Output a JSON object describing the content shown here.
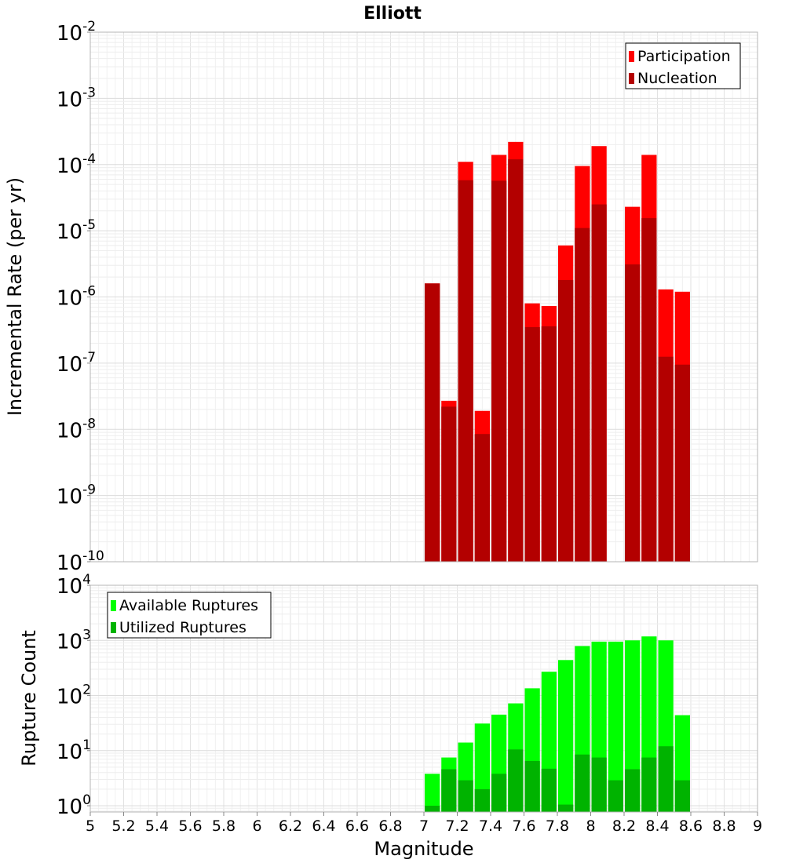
{
  "chart_data": [
    {
      "type": "bar",
      "title": "Elliott",
      "xlabel": "",
      "ylabel": "Incremental Rate (per yr)",
      "scale": "log",
      "ylim": [
        1e-10,
        0.01
      ],
      "xlim": [
        5,
        9
      ],
      "bar_width": 0.1,
      "y_ticks": [
        {
          "base": "10",
          "exp": "-10"
        },
        {
          "base": "10",
          "exp": "-9"
        },
        {
          "base": "10",
          "exp": "-8"
        },
        {
          "base": "10",
          "exp": "-7"
        },
        {
          "base": "10",
          "exp": "-6"
        },
        {
          "base": "10",
          "exp": "-5"
        },
        {
          "base": "10",
          "exp": "-4"
        },
        {
          "base": "10",
          "exp": "-3"
        },
        {
          "base": "10",
          "exp": "-2"
        }
      ],
      "legend": {
        "position": "top-right"
      },
      "series": [
        {
          "name": "Participation",
          "color": "#ff0000",
          "x": [
            7.05,
            7.15,
            7.25,
            7.35,
            7.45,
            7.55,
            7.65,
            7.75,
            7.85,
            7.95,
            8.05,
            8.25,
            8.35,
            8.45,
            8.55
          ],
          "values": [
            1.6e-06,
            2.7e-08,
            0.00011,
            1.9e-08,
            0.00014,
            0.00022,
            8e-07,
            7.3e-07,
            6e-06,
            9.5e-05,
            0.00019,
            2.3e-05,
            0.00014,
            1.3e-06,
            1.2e-06
          ]
        },
        {
          "name": "Nucleation",
          "color": "#b30000",
          "x": [
            7.05,
            7.15,
            7.25,
            7.35,
            7.45,
            7.55,
            7.65,
            7.75,
            7.85,
            7.95,
            8.05,
            8.25,
            8.35,
            8.45,
            8.55
          ],
          "values": [
            1.6e-06,
            2.2e-08,
            5.8e-05,
            8.5e-09,
            5.7e-05,
            0.00012,
            3.5e-07,
            3.6e-07,
            1.8e-06,
            1.1e-05,
            2.5e-05,
            3.1e-06,
            1.55e-05,
            1.25e-07,
            9.5e-08
          ]
        }
      ]
    },
    {
      "type": "bar",
      "title": "",
      "xlabel": "Magnitude",
      "ylabel": "Rupture Count",
      "scale": "log",
      "ylim": [
        0.77,
        10000.0
      ],
      "xlim": [
        5,
        9
      ],
      "bar_width": 0.1,
      "x_tick_labels": [
        "5",
        "5.2",
        "5.4",
        "5.6",
        "5.8",
        "6",
        "6.2",
        "6.4",
        "6.6",
        "6.8",
        "7",
        "7.2",
        "7.4",
        "7.6",
        "7.8",
        "8",
        "8.2",
        "8.4",
        "8.6",
        "8.8",
        "9"
      ],
      "y_ticks": [
        {
          "base": "10",
          "exp": "0"
        },
        {
          "base": "10",
          "exp": "1"
        },
        {
          "base": "10",
          "exp": "2"
        },
        {
          "base": "10",
          "exp": "3"
        },
        {
          "base": "10",
          "exp": "4"
        }
      ],
      "legend": {
        "position": "top-left"
      },
      "series": [
        {
          "name": "Available Ruptures",
          "color": "#00ff00",
          "x": [
            7.05,
            7.15,
            7.25,
            7.35,
            7.45,
            7.55,
            7.65,
            7.75,
            7.85,
            7.95,
            8.05,
            8.15,
            8.25,
            8.35,
            8.45,
            8.55
          ],
          "values": [
            3.8,
            7.5,
            14,
            31,
            45,
            72,
            135,
            270,
            440,
            790,
            950,
            950,
            1000,
            1180,
            1000,
            44
          ]
        },
        {
          "name": "Utilized Ruptures",
          "color": "#00b300",
          "x": [
            7.05,
            7.15,
            7.25,
            7.35,
            7.45,
            7.55,
            7.65,
            7.75,
            7.85,
            7.95,
            8.05,
            8.15,
            8.25,
            8.35,
            8.45,
            8.55
          ],
          "values": [
            1.0,
            4.6,
            2.9,
            2.0,
            3.8,
            10.5,
            6.5,
            4.7,
            1.05,
            8.5,
            7.5,
            2.9,
            4.6,
            7.5,
            12,
            2.9
          ]
        }
      ]
    }
  ]
}
